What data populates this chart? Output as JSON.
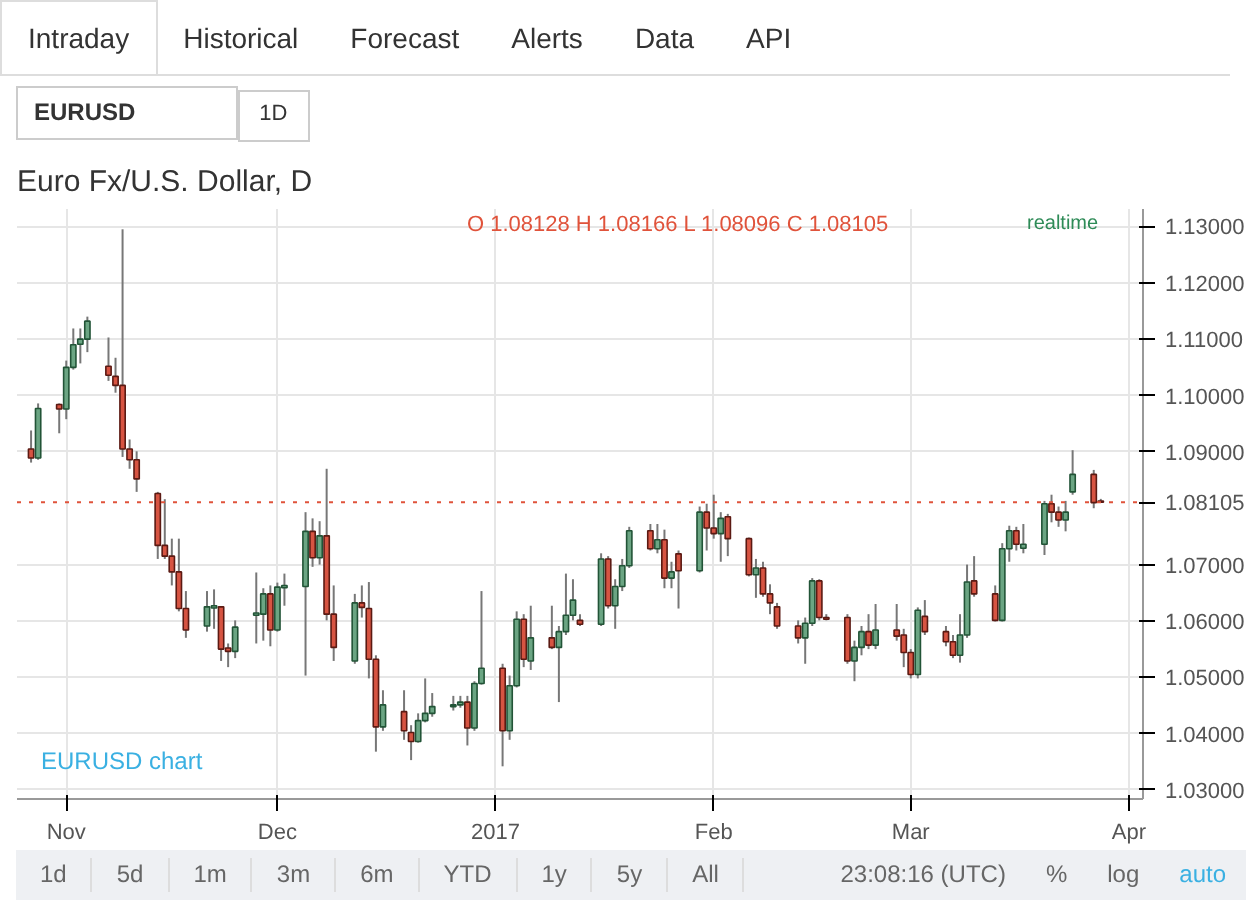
{
  "chart_data": {
    "type": "candlestick",
    "title": "Euro Fx/U.S. Dollar, D",
    "annotations": [
      "Intraday",
      "Historical",
      "Forecast",
      "Alerts",
      "Data",
      "API",
      "EURUSD",
      "1D",
      "O 1.08128 H 1.08166 L 1.08096 C 1.08105",
      "realtime",
      "EURUSD chart",
      "1d",
      "5d",
      "1m",
      "3m",
      "6m",
      "YTD",
      "1y",
      "5y",
      "All",
      "23:08:16 (UTC)",
      "%",
      "log",
      "auto"
    ],
    "colors": [
      "#d75442",
      "#6ba583",
      "#d75442",
      "#6ba583",
      "#6ba583",
      "#6ba583",
      "#6ba583",
      "#d75442",
      "#d75442",
      "#d75442",
      "#d75442",
      "#d75442",
      "#d75442",
      "#d75442",
      "#d75442",
      "#d75442",
      "#d75442",
      "#6ba583",
      "#6ba583",
      "#d75442",
      "#d75442",
      "#6ba583",
      "#6ba583",
      "#6ba583",
      "#d75442",
      "#6ba583",
      "#6ba583",
      "#6ba583",
      "#d75442",
      "#6ba583",
      "#d75442",
      "#d75442",
      "#6ba583",
      "#d75442",
      "#d75442",
      "#d75442",
      "#6ba583",
      "#d75442",
      "#d75442",
      "#6ba583",
      "#6ba583",
      "#6ba583",
      "#6ba583",
      "#6ba583",
      "#d75442",
      "#6ba583",
      "#6ba583",
      "#d75442",
      "#6ba583",
      "#6ba583",
      "#d75442",
      "#6ba583",
      "#d75442",
      "#6ba583",
      "#6ba583",
      "#6ba583",
      "#d75442",
      "#6ba583",
      "#d75442",
      "#6ba583",
      "#6ba583",
      "#6ba583",
      "#d75442",
      "#6ba583",
      "#d75442",
      "#6ba583",
      "#d75442",
      "#6ba583",
      "#d75442",
      "#d75442",
      "#6ba583",
      "#d75442",
      "#d75442",
      "#6ba583",
      "#d75442",
      "#d75442",
      "#d75442",
      "#d75442",
      "#6ba583",
      "#6ba583",
      "#d75442",
      "#d75442",
      "#d75442",
      "#6ba583",
      "#6ba583",
      "#d75442",
      "#6ba583",
      "#d75442",
      "#d75442",
      "#d75442",
      "#6ba583",
      "#d75442",
      "#d75442",
      "#d75442",
      "#6ba583",
      "#6ba583",
      "#d75442",
      "#d75442",
      "#6ba583",
      "#6ba583",
      "#d75442",
      "#6ba583",
      "#6ba583",
      "#d75442",
      "#d75442",
      "#6ba583",
      "#6ba583",
      "#d75442",
      "#d75442"
    ],
    "x": [
      "2016-10-27",
      "2016-10-28",
      "2016-10-31",
      "2016-11-01",
      "2016-11-02",
      "2016-11-03",
      "2016-11-04",
      "2016-11-07",
      "2016-11-08",
      "2016-11-09",
      "2016-11-10",
      "2016-11-11",
      "2016-11-14",
      "2016-11-15",
      "2016-11-16",
      "2016-11-17",
      "2016-11-18",
      "2016-11-21",
      "2016-11-22",
      "2016-11-23",
      "2016-11-24",
      "2016-11-25",
      "2016-11-28",
      "2016-11-29",
      "2016-11-30",
      "2016-12-01",
      "2016-12-02",
      "2016-12-05",
      "2016-12-06",
      "2016-12-07",
      "2016-12-08",
      "2016-12-09",
      "2016-12-12",
      "2016-12-13",
      "2016-12-14",
      "2016-12-15",
      "2016-12-16",
      "2016-12-19",
      "2016-12-20",
      "2016-12-21",
      "2016-12-22",
      "2016-12-23",
      "2016-12-26",
      "2016-12-27",
      "2016-12-28",
      "2016-12-29",
      "2016-12-30",
      "2017-01-02",
      "2017-01-03",
      "2017-01-04",
      "2017-01-05",
      "2017-01-06",
      "2017-01-09",
      "2017-01-10",
      "2017-01-11",
      "2017-01-12",
      "2017-01-13",
      "2017-01-16",
      "2017-01-17",
      "2017-01-18",
      "2017-01-19",
      "2017-01-20",
      "2017-01-23",
      "2017-01-24",
      "2017-01-25",
      "2017-01-26",
      "2017-01-27",
      "2017-01-30",
      "2017-01-31",
      "2017-02-01",
      "2017-02-02",
      "2017-02-03",
      "2017-02-06",
      "2017-02-07",
      "2017-02-08",
      "2017-02-09",
      "2017-02-10",
      "2017-02-13",
      "2017-02-14",
      "2017-02-15",
      "2017-02-16",
      "2017-02-17",
      "2017-02-20",
      "2017-02-21",
      "2017-02-22",
      "2017-02-23",
      "2017-02-24",
      "2017-02-27",
      "2017-02-28",
      "2017-03-01",
      "2017-03-02",
      "2017-03-03",
      "2017-03-06",
      "2017-03-07",
      "2017-03-08",
      "2017-03-09",
      "2017-03-10",
      "2017-03-13",
      "2017-03-14",
      "2017-03-15",
      "2017-03-16",
      "2017-03-17",
      "2017-03-20",
      "2017-03-21",
      "2017-03-22",
      "2017-03-23",
      "2017-03-24",
      "2017-03-27",
      "2017-03-28"
    ],
    "ohlc": [
      [
        1.0905,
        1.0938,
        1.0881,
        1.0889
      ],
      [
        1.0889,
        1.0986,
        1.0886,
        1.0977
      ],
      [
        1.0984,
        1.0986,
        1.0933,
        1.0976
      ],
      [
        1.0976,
        1.1062,
        1.0958,
        1.105
      ],
      [
        1.105,
        1.1119,
        1.1046,
        1.109
      ],
      [
        1.1091,
        1.1119,
        1.1057,
        1.11
      ],
      [
        1.11,
        1.114,
        1.1077,
        1.1132
      ],
      [
        1.1052,
        1.1103,
        1.1026,
        1.1036
      ],
      [
        1.1034,
        1.1067,
        1.1005,
        1.1018
      ],
      [
        1.1018,
        1.1295,
        1.0891,
        1.0905
      ],
      [
        1.0905,
        1.0922,
        1.087,
        1.0886
      ],
      [
        1.0886,
        1.0901,
        1.0829,
        1.0852
      ],
      [
        1.0826,
        1.0829,
        1.071,
        1.0734
      ],
      [
        1.0734,
        1.0816,
        1.071,
        1.0715
      ],
      [
        1.0715,
        1.0746,
        1.0663,
        1.0687
      ],
      [
        1.0687,
        1.0746,
        1.0617,
        1.0622
      ],
      [
        1.0622,
        1.0653,
        1.057,
        1.0584
      ],
      [
        1.0591,
        1.0653,
        1.0581,
        1.0625
      ],
      [
        1.0623,
        1.0656,
        1.0586,
        1.0627
      ],
      [
        1.0625,
        1.0626,
        1.0529,
        1.055
      ],
      [
        1.0552,
        1.056,
        1.0518,
        1.0546
      ],
      [
        1.0546,
        1.0601,
        1.0534,
        1.0589
      ],
      [
        1.061,
        1.0686,
        1.056,
        1.0614
      ],
      [
        1.0612,
        1.0658,
        1.0565,
        1.0648
      ],
      [
        1.0648,
        1.0663,
        1.0555,
        1.0584
      ],
      [
        1.0584,
        1.0668,
        1.0581,
        1.066
      ],
      [
        1.0659,
        1.0684,
        1.0627,
        1.0663
      ],
      [
        1.0661,
        1.0793,
        1.0503,
        1.0759
      ],
      [
        1.0759,
        1.0782,
        1.0696,
        1.0712
      ],
      [
        1.0712,
        1.0777,
        1.07,
        1.0751
      ],
      [
        1.0751,
        1.087,
        1.0601,
        1.0612
      ],
      [
        1.0612,
        1.0663,
        1.0529,
        1.0553
      ],
      [
        1.0529,
        1.0648,
        1.0524,
        1.0632
      ],
      [
        1.0632,
        1.0663,
        1.0606,
        1.0624
      ],
      [
        1.0622,
        1.0669,
        1.0498,
        1.0532
      ],
      [
        1.0532,
        1.0539,
        1.0368,
        1.0412
      ],
      [
        1.0412,
        1.0477,
        1.0405,
        1.0451
      ],
      [
        1.0439,
        1.0477,
        1.0389,
        1.0405
      ],
      [
        1.0402,
        1.0415,
        1.0353,
        1.0386
      ],
      [
        1.0386,
        1.0436,
        1.0384,
        1.0423
      ],
      [
        1.0423,
        1.0498,
        1.042,
        1.0436
      ],
      [
        1.0436,
        1.0472,
        1.043,
        1.0448
      ],
      [
        1.0448,
        1.0467,
        1.0441,
        1.0451
      ],
      [
        1.0451,
        1.0467,
        1.0446,
        1.0456
      ],
      [
        1.0456,
        1.0467,
        1.0379,
        1.041
      ],
      [
        1.041,
        1.0493,
        1.0405,
        1.0489
      ],
      [
        1.0489,
        1.0653,
        1.0487,
        1.0516
      ],
      [
        1.0516,
        1.0524,
        1.0342,
        1.0405
      ],
      [
        1.0405,
        1.0503,
        1.0389,
        1.0485
      ],
      [
        1.0485,
        1.0617,
        1.0482,
        1.0603
      ],
      [
        1.0603,
        1.0612,
        1.0518,
        1.0532
      ],
      [
        1.0529,
        1.0627,
        1.0513,
        1.057
      ],
      [
        1.057,
        1.0627,
        1.055,
        1.0553
      ],
      [
        1.0553,
        1.0591,
        1.0456,
        1.0581
      ],
      [
        1.0581,
        1.0684,
        1.0575,
        1.061
      ],
      [
        1.061,
        1.0674,
        1.0601,
        1.0637
      ],
      [
        1.0601,
        1.0612,
        1.0591,
        1.0594
      ],
      [
        1.0594,
        1.072,
        1.0591,
        1.071
      ],
      [
        1.071,
        1.0715,
        1.0622,
        1.0627
      ],
      [
        1.0627,
        1.0674,
        1.0586,
        1.0661
      ],
      [
        1.0661,
        1.071,
        1.0653,
        1.0698
      ],
      [
        1.0698,
        1.0767,
        1.0694,
        1.076
      ],
      [
        1.076,
        1.0772,
        1.0725,
        1.0728
      ],
      [
        1.0728,
        1.0772,
        1.072,
        1.0744
      ],
      [
        1.0744,
        1.0762,
        1.0658,
        1.0676
      ],
      [
        1.0676,
        1.0705,
        1.0658,
        1.0687
      ],
      [
        1.0719,
        1.0725,
        1.0622,
        1.0689
      ],
      [
        1.0689,
        1.0803,
        1.0686,
        1.0793
      ],
      [
        1.0793,
        1.0808,
        1.0725,
        1.0765
      ],
      [
        1.0765,
        1.0824,
        1.0746,
        1.0755
      ],
      [
        1.0755,
        1.0793,
        1.0705,
        1.0782
      ],
      [
        1.0785,
        1.079,
        1.0715,
        1.0746
      ],
      [
        1.0746,
        1.0748,
        1.0679,
        1.0682
      ],
      [
        1.0682,
        1.071,
        1.0641,
        1.0694
      ],
      [
        1.0694,
        1.0705,
        1.0643,
        1.0648
      ],
      [
        1.0648,
        1.0665,
        1.0612,
        1.0632
      ],
      [
        1.0625,
        1.0632,
        1.0586,
        1.0591
      ],
      [
        1.0591,
        1.0601,
        1.056,
        1.057
      ],
      [
        1.057,
        1.0606,
        1.0524,
        1.0596
      ],
      [
        1.0596,
        1.0676,
        1.0591,
        1.0671
      ],
      [
        1.0671,
        1.0674,
        1.0601,
        1.0606
      ],
      [
        1.0606,
        1.0612,
        1.0601,
        1.0603
      ],
      [
        1.0606,
        1.0612,
        1.0524,
        1.0529
      ],
      [
        1.0529,
        1.0565,
        1.0493,
        1.0553
      ],
      [
        1.0553,
        1.0591,
        1.0539,
        1.0581
      ],
      [
        1.0581,
        1.0612,
        1.055,
        1.0557
      ],
      [
        1.0557,
        1.063,
        1.055,
        1.0584
      ],
      [
        1.0584,
        1.063,
        1.0565,
        1.0573
      ],
      [
        1.0575,
        1.0586,
        1.0518,
        1.0544
      ],
      [
        1.0544,
        1.055,
        1.0498,
        1.0505
      ],
      [
        1.0505,
        1.0624,
        1.0498,
        1.0619
      ],
      [
        1.0608,
        1.0637,
        1.0575,
        1.0581
      ],
      [
        1.0581,
        1.0591,
        1.0555,
        1.0563
      ],
      [
        1.0563,
        1.0575,
        1.0534,
        1.0539
      ],
      [
        1.0539,
        1.0612,
        1.0526,
        1.0575
      ],
      [
        1.0575,
        1.07,
        1.057,
        1.0669
      ],
      [
        1.0671,
        1.0715,
        1.0643,
        1.0648
      ],
      [
        1.0648,
        1.0663,
        1.0599,
        1.0601
      ],
      [
        1.0601,
        1.0738,
        1.0599,
        1.0728
      ],
      [
        1.0728,
        1.0769,
        1.0705,
        1.076
      ],
      [
        1.076,
        1.0767,
        1.0725,
        1.0736
      ],
      [
        1.0729,
        1.0772,
        1.072,
        1.0736
      ],
      [
        1.0736,
        1.0813,
        1.0717,
        1.0808
      ],
      [
        1.0808,
        1.0824,
        1.0775,
        1.0793
      ],
      [
        1.0793,
        1.0803,
        1.0767,
        1.0779
      ],
      [
        1.0779,
        1.0813,
        1.0759,
        1.0793
      ],
      [
        1.0829,
        1.0903,
        1.0824,
        1.086
      ],
      [
        1.086,
        1.0868,
        1.08,
        1.081
      ],
      [
        1.08128,
        1.08166,
        1.08096,
        1.08105
      ]
    ],
    "xlim": [
      "2016-10-25",
      "2017-04-03"
    ],
    "xticks": [
      {
        "value": "2016-11-01",
        "label": "Nov"
      },
      {
        "value": "2016-12-01",
        "label": "Dec"
      },
      {
        "value": "2017-01-01",
        "label": "2017"
      },
      {
        "value": "2017-02-01",
        "label": "Feb"
      },
      {
        "value": "2017-03-01",
        "label": "Mar"
      },
      {
        "value": "2017-04-01",
        "label": "Apr"
      }
    ],
    "ylim": [
      1.0284,
      1.1331
    ],
    "yticks": [
      {
        "value": 1.03,
        "label": "1.03000"
      },
      {
        "value": 1.04,
        "label": "1.04000"
      },
      {
        "value": 1.05,
        "label": "1.05000"
      },
      {
        "value": 1.06,
        "label": "1.06000"
      },
      {
        "value": 1.07,
        "label": "1.07000"
      },
      {
        "value": 1.09,
        "label": "1.09000"
      },
      {
        "value": 1.1,
        "label": "1.10000"
      },
      {
        "value": 1.11,
        "label": "1.11000"
      },
      {
        "value": 1.12,
        "label": "1.12000"
      },
      {
        "value": 1.13,
        "label": "1.13000"
      }
    ],
    "ref_lines": [
      {
        "axis": "y",
        "value": 1.08105,
        "label": "1.08105",
        "color": "#e0533b",
        "line_style": "dotted"
      }
    ],
    "grid": true
  }
}
